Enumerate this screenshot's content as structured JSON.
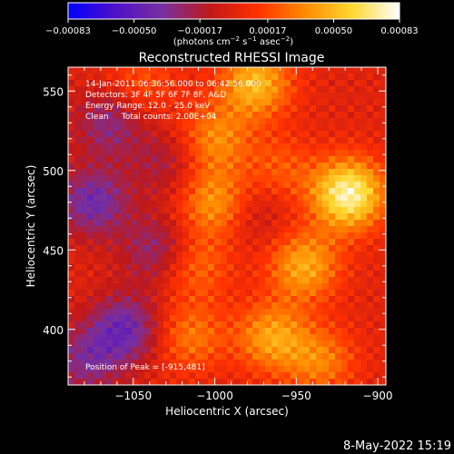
{
  "chart_data": {
    "type": "heatmap",
    "title": "Reconstructed RHESSI Image",
    "xlabel": "Heliocentric X (arcsec)",
    "ylabel": "Heliocentric Y (arcsec)",
    "xlim": [
      -1090,
      -895
    ],
    "ylim": [
      365,
      565
    ],
    "x_ticks": [
      -1050,
      -1000,
      -950,
      -900
    ],
    "x_tick_labels": [
      "−1050",
      "−1000",
      "−950",
      "−900"
    ],
    "y_ticks": [
      400,
      450,
      500,
      550
    ],
    "y_tick_labels": [
      "400",
      "450",
      "500",
      "550"
    ],
    "colorbar": {
      "range": [
        -0.00083,
        0.00083
      ],
      "ticks": [
        -0.00083,
        -0.0005,
        -0.00017,
        0.00017,
        0.0005,
        0.00083
      ],
      "tick_labels": [
        "−0.00083",
        "−0.00050",
        "−0.00017",
        "0.00017",
        "0.00050",
        "0.00083"
      ],
      "unit_prefix": "(photons cm",
      "unit_exp1": "−2",
      "unit_mid": " s",
      "unit_exp2": "−1",
      "unit_mid2": " asec",
      "unit_exp3": "−2",
      "unit_suffix": ")",
      "colormap": [
        "#0000ff",
        "#5010c8",
        "#7830a0",
        "#c01818",
        "#ff3000",
        "#ff8a00",
        "#ffd830",
        "#ffffff"
      ]
    },
    "annotations": {
      "time_range": "14-Jan-2011 06:36:56.000 to 06:42:56.000",
      "detectors": "Detectors: 3F 4F 5F 6F 7F 8F, A&D",
      "energy_range": "Energy Range: 12.0 - 25.0 keV",
      "clean": "Clean     Total counts: 2.00E+04",
      "peak": "Position of Peak = [-915,481]"
    },
    "peak": [
      -915,
      481
    ],
    "emission_features": [
      {
        "x": -918,
        "y": 485,
        "value": 0.00075
      },
      {
        "x": -945,
        "y": 440,
        "value": 0.00045
      },
      {
        "x": -965,
        "y": 395,
        "value": 0.00042
      },
      {
        "x": -1000,
        "y": 480,
        "value": 0.0004
      },
      {
        "x": -975,
        "y": 555,
        "value": 0.0005
      },
      {
        "x": -1000,
        "y": 520,
        "value": 0.00035
      },
      {
        "x": -1012,
        "y": 440,
        "value": 0.00028
      },
      {
        "x": -1015,
        "y": 395,
        "value": 0.0003
      },
      {
        "x": -960,
        "y": 500,
        "value": 0.00022
      },
      {
        "x": -935,
        "y": 380,
        "value": 0.00032
      },
      {
        "x": -1045,
        "y": 555,
        "value": 0.0002
      },
      {
        "x": -1075,
        "y": 480,
        "value": -0.0004
      },
      {
        "x": -1055,
        "y": 400,
        "value": -0.00042
      },
      {
        "x": -1035,
        "y": 450,
        "value": -0.0003
      },
      {
        "x": -1065,
        "y": 530,
        "value": -0.0003
      },
      {
        "x": -1030,
        "y": 505,
        "value": -0.0002
      },
      {
        "x": -1080,
        "y": 380,
        "value": -0.0003
      },
      {
        "x": -975,
        "y": 475,
        "value": -0.00015
      }
    ]
  },
  "footer": {
    "date": "8-May-2022 15:19"
  }
}
